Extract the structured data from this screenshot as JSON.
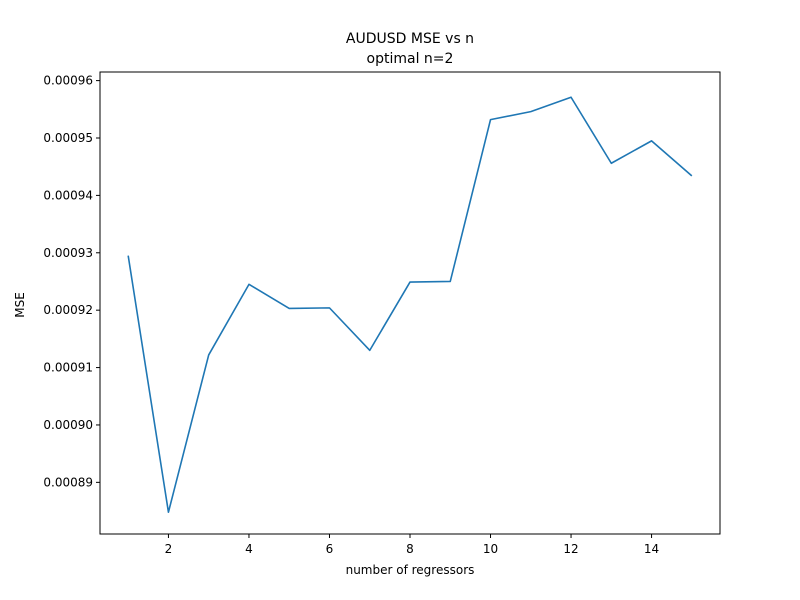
{
  "chart_data": {
    "type": "line",
    "title": "AUDUSD MSE vs n",
    "subtitle": "optimal n=2",
    "xlabel": "number of regressors",
    "ylabel": "MSE",
    "xlim": [
      0.3,
      15.7
    ],
    "ylim": [
      0.000881,
      0.0009615
    ],
    "xticks": [
      2,
      4,
      6,
      8,
      10,
      12,
      14
    ],
    "xtick_labels": [
      "2",
      "4",
      "6",
      "8",
      "10",
      "12",
      "14"
    ],
    "yticks": [
      0.00089,
      0.0009,
      0.00091,
      0.00092,
      0.00093,
      0.00094,
      0.00095,
      0.00096
    ],
    "ytick_labels": [
      "0.00089",
      "0.00090",
      "0.00091",
      "0.00092",
      "0.00093",
      "0.00094",
      "0.00095",
      "0.00096"
    ],
    "grid": false,
    "series": [
      {
        "color": "#1f77b4",
        "x": [
          1,
          2,
          3,
          4,
          5,
          6,
          7,
          8,
          9,
          10,
          11,
          12,
          13,
          14,
          15
        ],
        "y": [
          0.0009295,
          0.0008848,
          0.0009122,
          0.0009245,
          0.0009203,
          0.0009204,
          0.000913,
          0.0009249,
          0.000925,
          0.0009532,
          0.0009546,
          0.0009571,
          0.0009456,
          0.0009495,
          0.0009434
        ]
      }
    ]
  }
}
